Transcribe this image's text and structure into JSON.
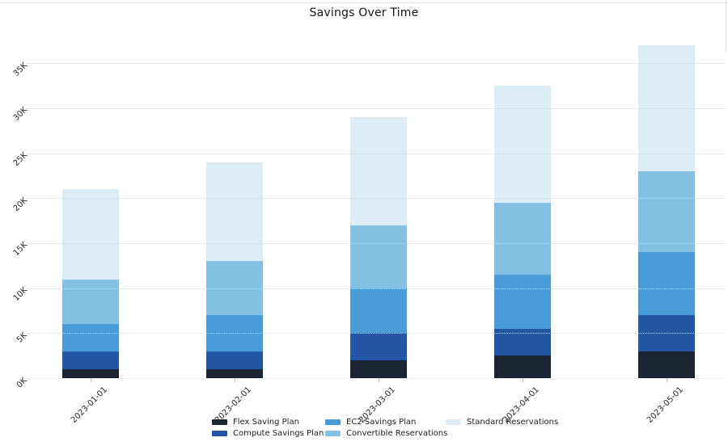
{
  "chart_data": {
    "type": "bar",
    "stacked": true,
    "title": "Savings Over Time",
    "xlabel": "",
    "ylabel": "",
    "categories": [
      "2023-01-01",
      "2023-02-01",
      "2023-03-01",
      "2023-04-01",
      "2023-05-01"
    ],
    "series": [
      {
        "name": "Flex Saving Plan",
        "color": "#1a2433",
        "values": [
          1000,
          1000,
          2000,
          2500,
          3000
        ]
      },
      {
        "name": "Compute Savings Plan",
        "color": "#2356a5",
        "values": [
          2000,
          2000,
          3000,
          3000,
          4000
        ]
      },
      {
        "name": "EC2 Savings Plan",
        "color": "#4a9cd8",
        "values": [
          3000,
          4000,
          5000,
          6000,
          7000
        ]
      },
      {
        "name": "Convertible Reservations",
        "color": "#84c1e4",
        "values": [
          5000,
          6000,
          7000,
          8000,
          9000
        ]
      },
      {
        "name": "Standard Reservations",
        "color": "#ddedf8",
        "values": [
          10000,
          11000,
          12000,
          13000,
          14000
        ]
      }
    ],
    "stack_totals": [
      21000,
      24000,
      29000,
      32500,
      37000
    ],
    "y_ticks": [
      "0K",
      "5K",
      "10K",
      "15K",
      "20K",
      "25K",
      "30K",
      "35K"
    ],
    "y_tick_values": [
      0,
      5000,
      10000,
      15000,
      20000,
      25000,
      30000,
      35000
    ],
    "ylim": [
      0,
      38000
    ],
    "grid": "horizontal-dotted",
    "legend_position": "bottom",
    "legend_columns": [
      [
        0,
        1
      ],
      [
        2,
        3
      ],
      [
        4
      ]
    ],
    "tick_label_rotation_deg": 45
  }
}
